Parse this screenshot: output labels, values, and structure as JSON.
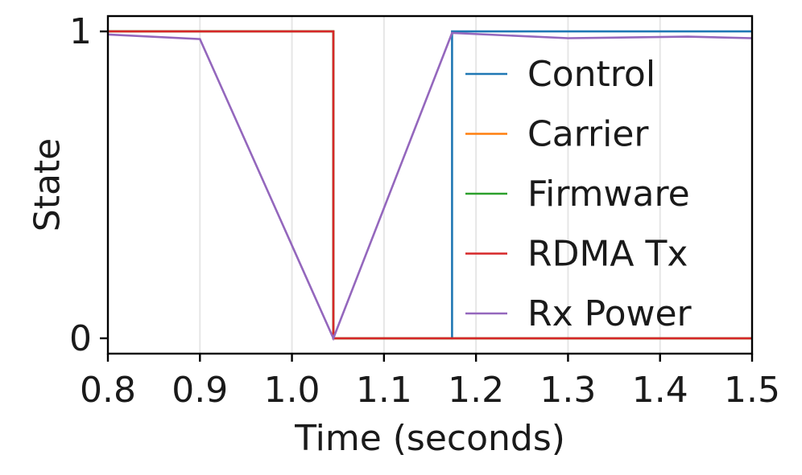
{
  "chart_data": {
    "type": "line",
    "xlabel": "Time (seconds)",
    "ylabel": "State",
    "xlim": [
      0.8,
      1.5
    ],
    "ylim": [
      -0.05,
      1.05
    ],
    "x_ticks": [
      "0.8",
      "0.9",
      "1.0",
      "1.1",
      "1.2",
      "1.3",
      "1.4",
      "1.5"
    ],
    "x_tick_values": [
      0.8,
      0.9,
      1.0,
      1.1,
      1.2,
      1.3,
      1.4,
      1.5
    ],
    "y_ticks": [
      "0",
      "1"
    ],
    "y_tick_values": [
      0,
      1
    ],
    "grid": "vertical",
    "legend_position": "right",
    "series": [
      {
        "name": "Control",
        "color": "#1f77b4",
        "points": [
          [
            0.8,
            1
          ],
          [
            1.045,
            1
          ],
          [
            1.045,
            0
          ],
          [
            1.174,
            0
          ],
          [
            1.174,
            1
          ],
          [
            1.5,
            1
          ]
        ]
      },
      {
        "name": "Carrier",
        "color": "#ff7f0e",
        "points": [
          [
            0.8,
            1
          ],
          [
            1.045,
            1
          ],
          [
            1.045,
            0
          ],
          [
            1.5,
            0
          ]
        ]
      },
      {
        "name": "Firmware",
        "color": "#2ca02c",
        "points": [
          [
            0.8,
            1
          ],
          [
            1.045,
            1
          ],
          [
            1.045,
            0
          ],
          [
            1.5,
            0
          ]
        ]
      },
      {
        "name": "RDMA Tx",
        "color": "#d62728",
        "points": [
          [
            0.8,
            1
          ],
          [
            1.045,
            1
          ],
          [
            1.045,
            0
          ],
          [
            1.5,
            0
          ]
        ]
      },
      {
        "name": "Rx Power",
        "color": "#9467bd",
        "points": [
          [
            0.8,
            0.99
          ],
          [
            0.9,
            0.975
          ],
          [
            1.045,
            0
          ],
          [
            1.174,
            0.995
          ],
          [
            1.3,
            0.978
          ],
          [
            1.43,
            0.983
          ],
          [
            1.5,
            0.978
          ]
        ]
      }
    ]
  }
}
